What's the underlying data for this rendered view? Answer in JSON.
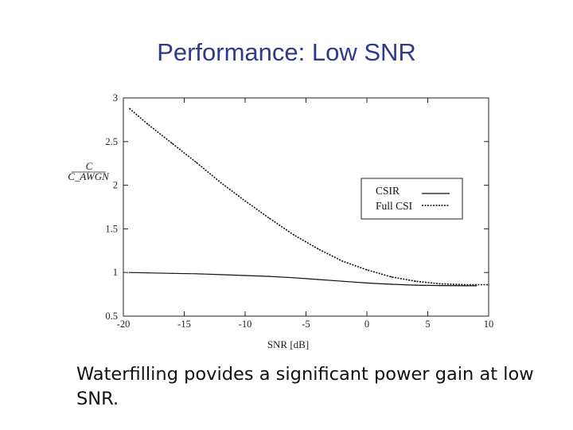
{
  "slide": {
    "title": "Performance: Low SNR",
    "caption": "Waterfilling povides a significant power gain at low SNR."
  },
  "chart_data": {
    "type": "line",
    "title": "",
    "xlabel": "SNR [dB]",
    "ylabel_numerator": "C",
    "ylabel_denominator": "C_AWGN",
    "xlim": [
      -20,
      10
    ],
    "ylim": [
      0.5,
      3
    ],
    "xticks": [
      -20,
      -15,
      -10,
      -5,
      0,
      5,
      10
    ],
    "yticks": [
      0.5,
      1,
      1.5,
      2,
      2.5,
      3
    ],
    "grid": false,
    "legend_position": "top-right",
    "series": [
      {
        "name": "CSIR",
        "style": "solid",
        "x": [
          -19.5,
          -18,
          -16,
          -14,
          -12,
          -10,
          -8,
          -6,
          -4,
          -2,
          0,
          2,
          4,
          6,
          8,
          9
        ],
        "y": [
          1.0,
          0.995,
          0.99,
          0.985,
          0.975,
          0.965,
          0.955,
          0.94,
          0.92,
          0.9,
          0.88,
          0.865,
          0.855,
          0.85,
          0.848,
          0.848
        ]
      },
      {
        "name": "Full CSI",
        "style": "dotted",
        "x": [
          -19.5,
          -18,
          -16,
          -14,
          -12,
          -10,
          -8,
          -6,
          -4,
          -2,
          0,
          2,
          4,
          6,
          8,
          10
        ],
        "y": [
          2.88,
          2.7,
          2.48,
          2.26,
          2.03,
          1.82,
          1.62,
          1.43,
          1.27,
          1.13,
          1.03,
          0.95,
          0.9,
          0.87,
          0.86,
          0.86
        ]
      }
    ]
  }
}
